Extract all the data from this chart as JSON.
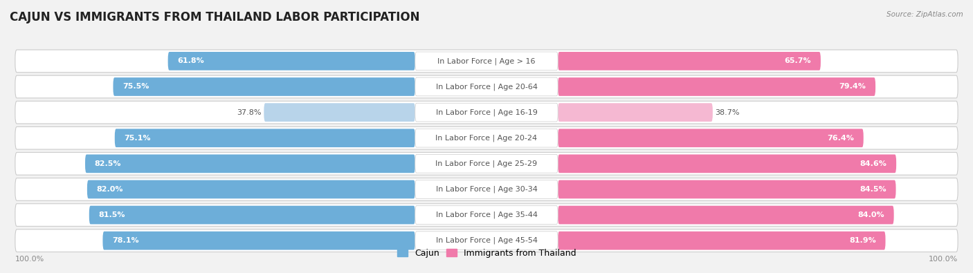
{
  "title": "CAJUN VS IMMIGRANTS FROM THAILAND LABOR PARTICIPATION",
  "source": "Source: ZipAtlas.com",
  "categories": [
    "In Labor Force | Age > 16",
    "In Labor Force | Age 20-64",
    "In Labor Force | Age 16-19",
    "In Labor Force | Age 20-24",
    "In Labor Force | Age 25-29",
    "In Labor Force | Age 30-34",
    "In Labor Force | Age 35-44",
    "In Labor Force | Age 45-54"
  ],
  "cajun_values": [
    61.8,
    75.5,
    37.8,
    75.1,
    82.5,
    82.0,
    81.5,
    78.1
  ],
  "thailand_values": [
    65.7,
    79.4,
    38.7,
    76.4,
    84.6,
    84.5,
    84.0,
    81.9
  ],
  "cajun_color": "#6daed9",
  "cajun_color_light": "#b8d4ea",
  "thailand_color": "#f07aaa",
  "thailand_color_light": "#f5b8d2",
  "row_bg_color": "#e8e8ec",
  "background_color": "#f2f2f2",
  "title_fontsize": 12,
  "label_fontsize": 8,
  "value_fontsize": 8,
  "legend_fontsize": 9,
  "axis_label_fontsize": 8
}
